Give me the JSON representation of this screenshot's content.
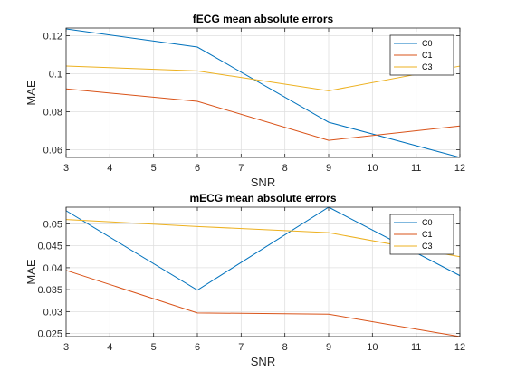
{
  "chart_data": [
    {
      "type": "line",
      "title": "fECG mean absolute errors",
      "xlabel": "SNR",
      "ylabel": "MAE",
      "x": [
        3,
        6,
        9,
        12
      ],
      "xlim": [
        3,
        12
      ],
      "ylim": [
        0.056,
        0.124
      ],
      "xticks": [
        3,
        4,
        5,
        6,
        7,
        8,
        9,
        10,
        11,
        12
      ],
      "yticks": [
        0.06,
        0.08,
        0.1,
        0.12
      ],
      "ytick_labels": [
        "0.06",
        "0.08",
        "0.1",
        "0.12"
      ],
      "grid": true,
      "legend_position": "top-right",
      "series": [
        {
          "name": "C0",
          "color": "#0072BD",
          "values": [
            0.1235,
            0.114,
            0.0745,
            0.056
          ]
        },
        {
          "name": "C1",
          "color": "#D95319",
          "values": [
            0.092,
            0.0855,
            0.065,
            0.0725
          ]
        },
        {
          "name": "C3",
          "color": "#EDB120",
          "values": [
            0.104,
            0.1015,
            0.091,
            0.104
          ]
        }
      ]
    },
    {
      "type": "line",
      "title": "mECG mean absolute errors",
      "xlabel": "SNR",
      "ylabel": "MAE",
      "x": [
        3,
        6,
        9,
        12
      ],
      "xlim": [
        3,
        12
      ],
      "ylim": [
        0.0243,
        0.0538
      ],
      "xticks": [
        3,
        4,
        5,
        6,
        7,
        8,
        9,
        10,
        11,
        12
      ],
      "yticks": [
        0.025,
        0.03,
        0.035,
        0.04,
        0.045,
        0.05
      ],
      "ytick_labels": [
        "0.025",
        "0.03",
        "0.035",
        "0.04",
        "0.045",
        "0.05"
      ],
      "grid": true,
      "legend_position": "top-right",
      "series": [
        {
          "name": "C0",
          "color": "#0072BD",
          "values": [
            0.053,
            0.0349,
            0.0538,
            0.0382
          ]
        },
        {
          "name": "C1",
          "color": "#D95319",
          "values": [
            0.0394,
            0.0297,
            0.0294,
            0.0243
          ]
        },
        {
          "name": "C3",
          "color": "#EDB120",
          "values": [
            0.051,
            0.0494,
            0.048,
            0.0425
          ]
        }
      ]
    }
  ]
}
